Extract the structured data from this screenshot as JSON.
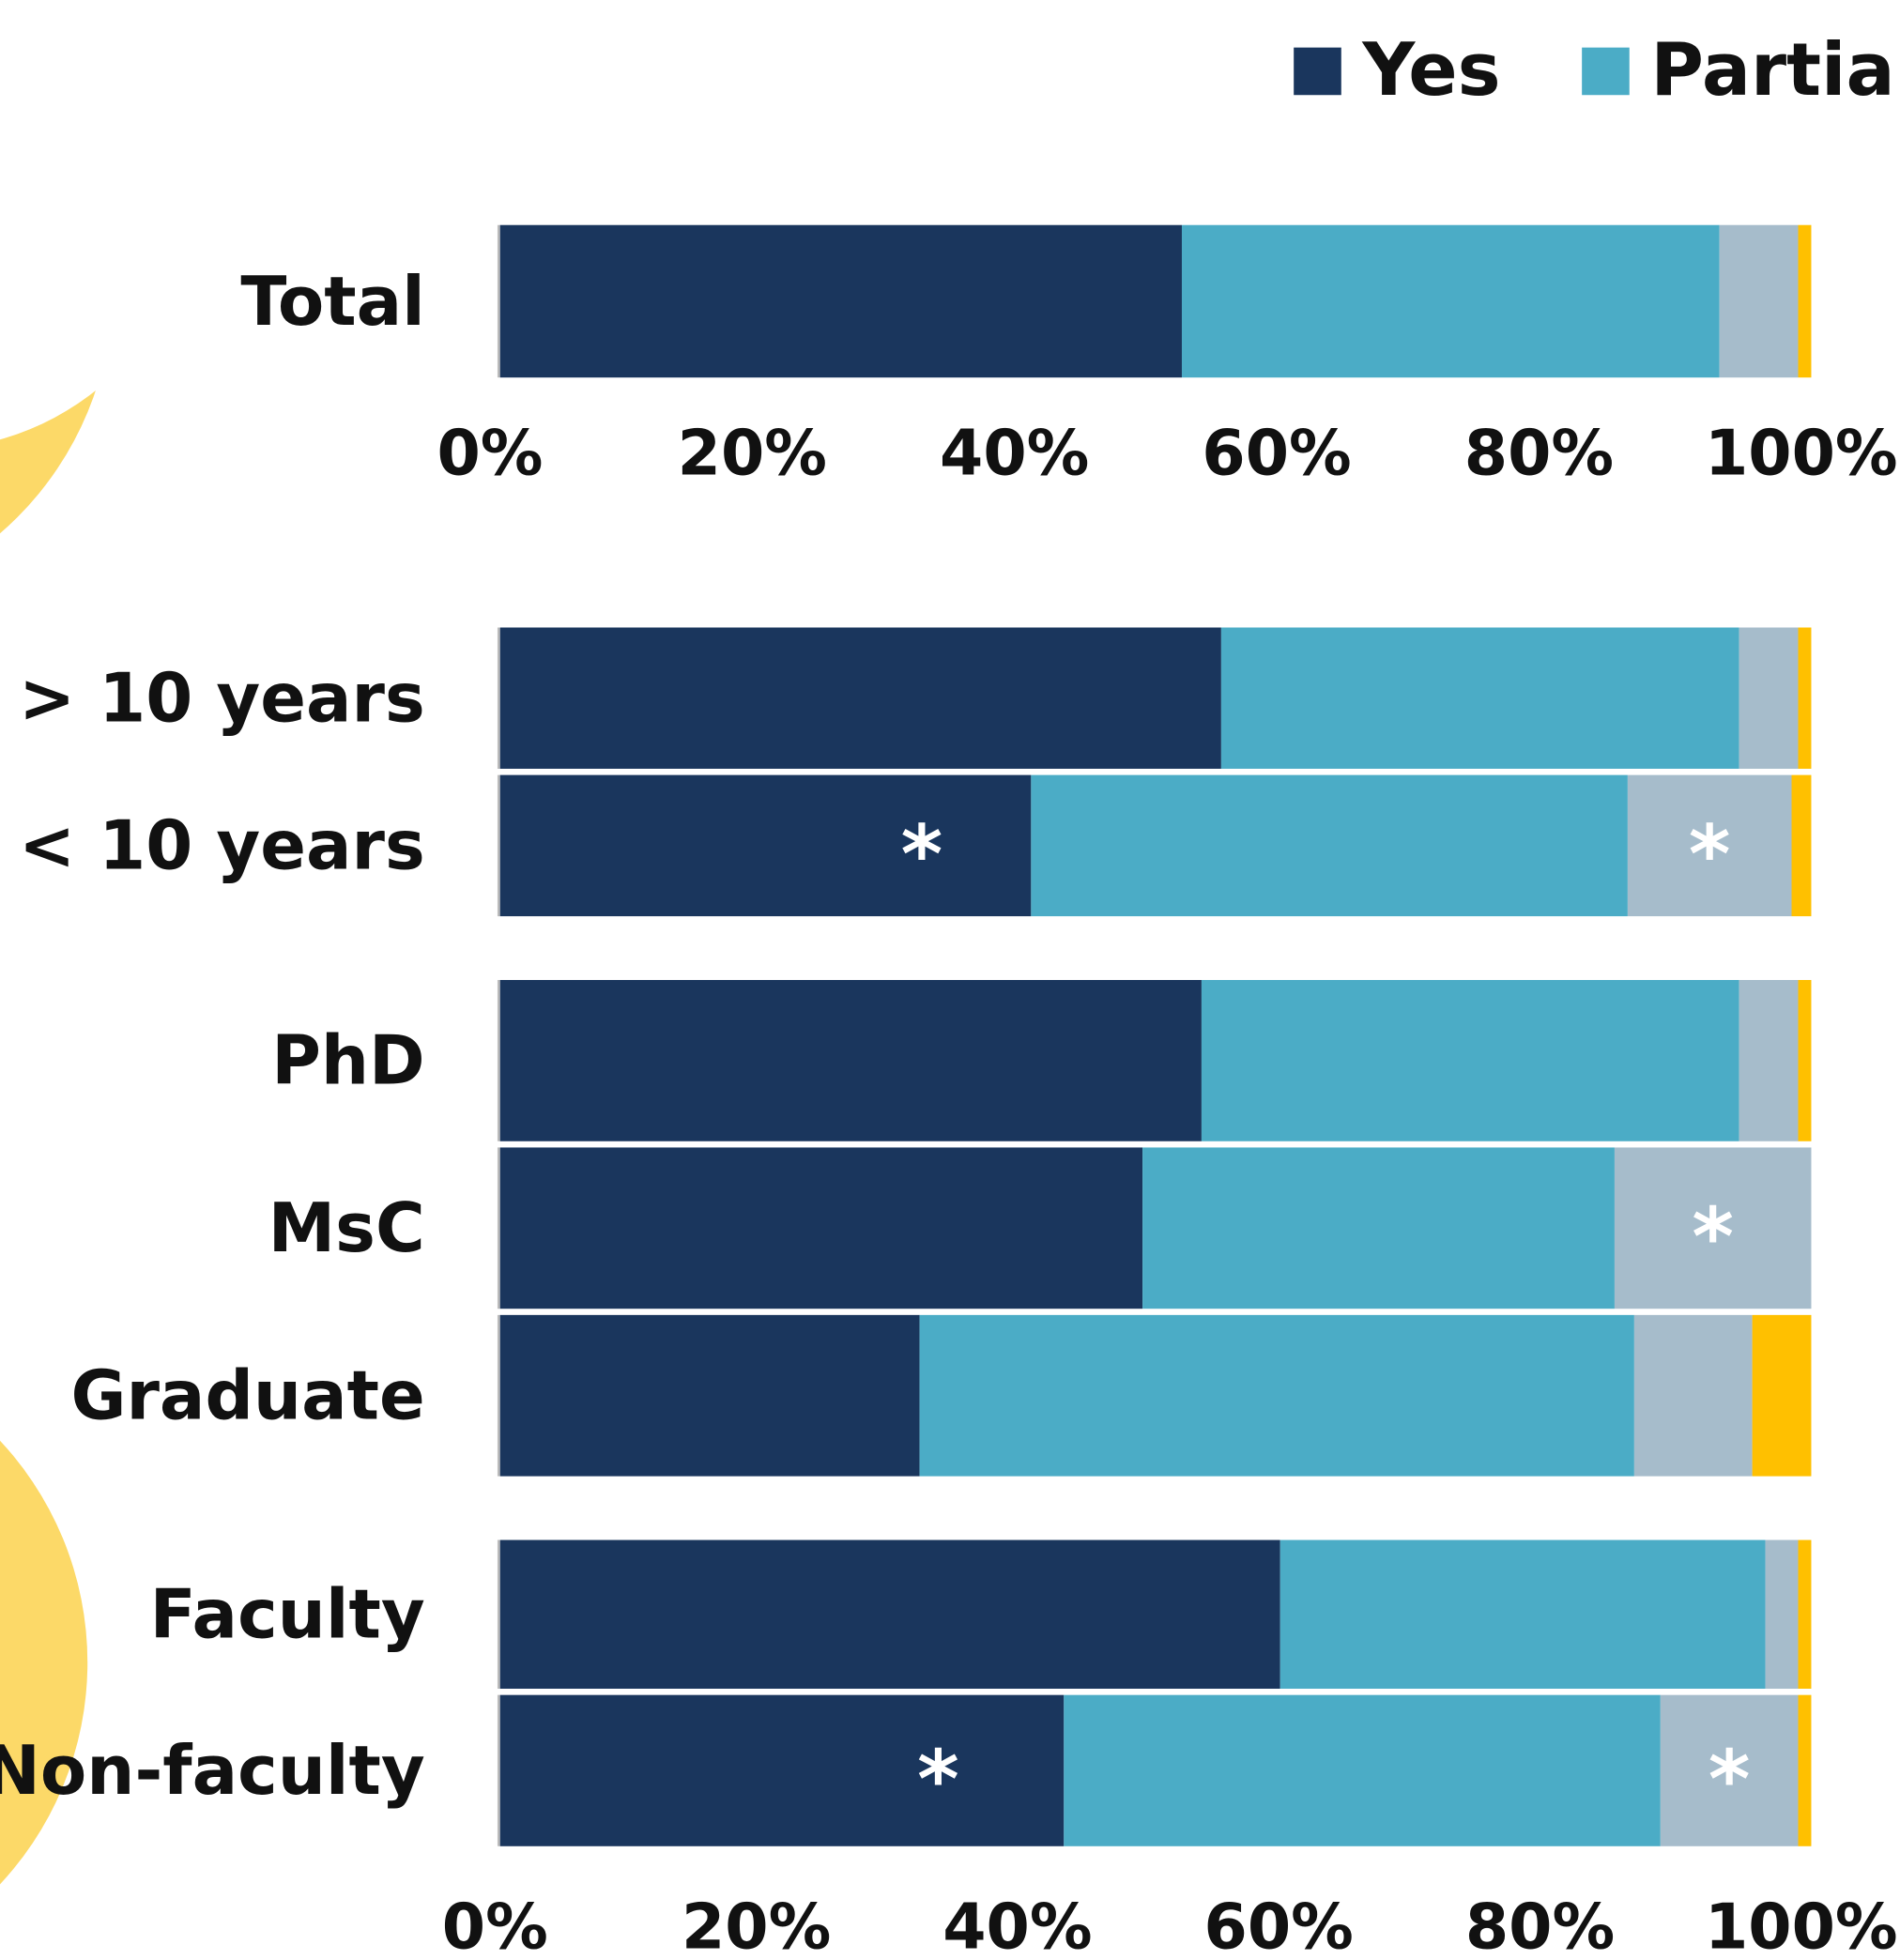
{
  "chart_data": {
    "type": "stacked-bar-horizontal",
    "categories": [
      "Total",
      "> 10 years",
      "< 10 years",
      "PhD",
      "MsC",
      "Graduate",
      "Faculty",
      "Non-faculty"
    ],
    "series": [
      {
        "name": "Yes",
        "color": "#1a365d",
        "values": [
          52,
          55,
          40.5,
          53.5,
          49,
          32,
          59.5,
          43
        ]
      },
      {
        "name": "Partially",
        "color": "#4bacc6",
        "values": [
          41,
          39.5,
          45.5,
          41,
          36,
          54.5,
          37,
          45.5
        ]
      },
      {
        "color": "#a6bccb",
        "values": [
          6,
          4.5,
          12.5,
          4.5,
          15,
          9,
          2.5,
          10.5
        ]
      },
      {
        "color": "#ffc000",
        "values": [
          1,
          1,
          1.5,
          1,
          0,
          4.5,
          1,
          1
        ]
      }
    ],
    "xlim": [
      0,
      100
    ],
    "xticks": [
      {
        "value": 0,
        "label": "0%"
      },
      {
        "value": 20,
        "label": "20%"
      },
      {
        "value": 40,
        "label": "40%"
      },
      {
        "value": 60,
        "label": "60%"
      },
      {
        "value": 80,
        "label": "80%"
      },
      {
        "value": 100,
        "label": "100%"
      }
    ],
    "annotations": [
      {
        "text": "*",
        "bar": 2,
        "segment": 0
      },
      {
        "text": "*",
        "bar": 2,
        "segment": 2
      },
      {
        "text": "*",
        "bar": 4,
        "segment": 2
      },
      {
        "text": "*",
        "bar": 7,
        "segment": 0
      },
      {
        "text": "*",
        "bar": 7,
        "segment": 2
      }
    ],
    "legend": "top-right"
  }
}
